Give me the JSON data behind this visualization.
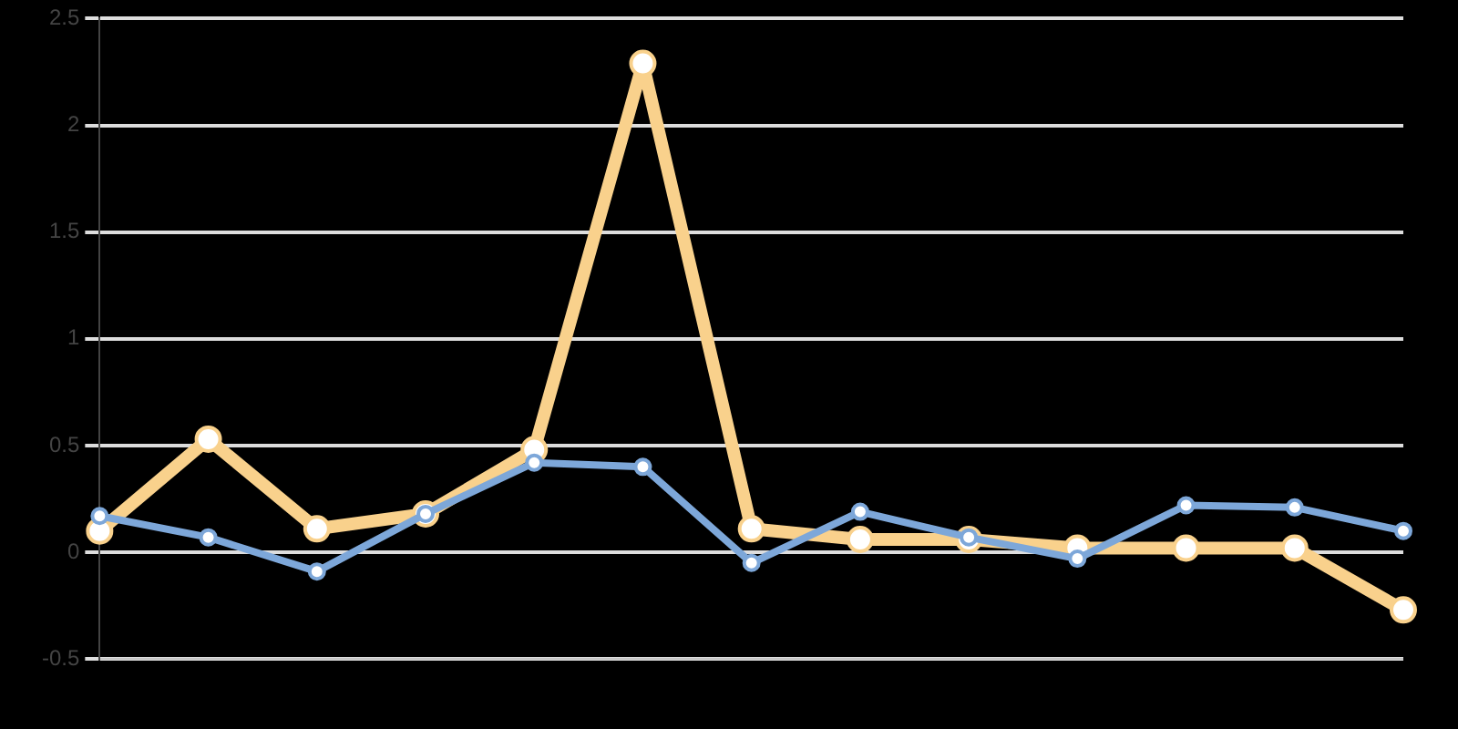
{
  "chart_data": {
    "type": "line",
    "categories": [
      null,
      null,
      null,
      null,
      null,
      null,
      null,
      null,
      null,
      null,
      null,
      null,
      null
    ],
    "series": [
      {
        "color": "#7da7d9",
        "values": [
          0.17,
          0.07,
          -0.09,
          0.18,
          0.42,
          0.4,
          -0.05,
          0.19,
          0.07,
          -0.03,
          0.22,
          0.21,
          0.1
        ]
      },
      {
        "color": "#f9d18c",
        "values": [
          0.1,
          0.53,
          0.11,
          0.18,
          0.48,
          2.29,
          0.11,
          0.06,
          0.06,
          0.02,
          0.02,
          0.02,
          -0.27
        ]
      }
    ],
    "ylim": [
      -0.5,
      2.5
    ],
    "yticks": [
      -0.5,
      0,
      0.5,
      1,
      1.5,
      2,
      2.5
    ],
    "grid": "y",
    "marker": "circle",
    "line_style": "solid",
    "legend": false
  }
}
